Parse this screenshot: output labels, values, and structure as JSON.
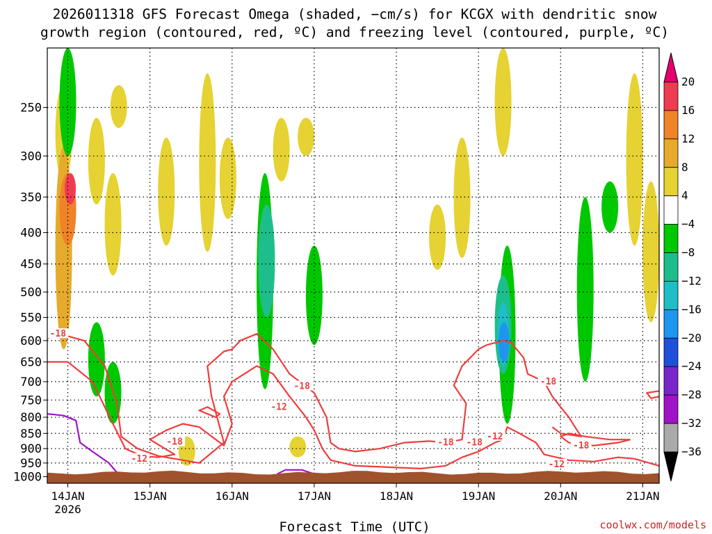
{
  "chart_data": {
    "type": "heatmap",
    "title_lines": [
      "2026011318 GFS Forecast Omega (shaded, −cm/s) for KCGX with dendritic snow",
      "growth region (contoured, red, ºC) and freezing level (contoured, purple, ºC)"
    ],
    "xlabel": "Forecast Time (UTC)",
    "x_ticks": [
      "14JAN",
      "15JAN",
      "16JAN",
      "17JAN",
      "18JAN",
      "19JAN",
      "20JAN",
      "21JAN"
    ],
    "x_tick_days": [
      14,
      15,
      16,
      17,
      18,
      19,
      20,
      21
    ],
    "x_sublabel": "2026",
    "xlim_days": [
      13.75,
      21.2
    ],
    "y_ticks": [
      250,
      300,
      350,
      400,
      450,
      500,
      550,
      600,
      650,
      700,
      750,
      800,
      850,
      900,
      950,
      1000
    ],
    "ylim_hpa": [
      200,
      1025
    ],
    "y_scale": "log",
    "grid": true,
    "colorbar": {
      "labels": [
        "20",
        "16",
        "12",
        "8",
        "4",
        "−4",
        "−8",
        "−12",
        "−16",
        "−20",
        "−24",
        "−28",
        "−32",
        "−36"
      ],
      "colors": [
        "#f03c50",
        "#f08228",
        "#e6aa2d",
        "#e6d232",
        "#ffffff",
        "#00c800",
        "#1ebe8c",
        "#1ebec8",
        "#1e96f0",
        "#1e50dc",
        "#7828c8",
        "#a014c8",
        "#aaaaaa"
      ],
      "top_arrow": "#e6006e",
      "bottom_arrow": "#000000"
    },
    "shaded": [
      {
        "level": "4",
        "color": "#e6d232",
        "day": 13.95,
        "p": [
          230,
          330
        ]
      },
      {
        "level": "4",
        "color": "#e6d232",
        "day": 14.35,
        "p": [
          260,
          360
        ]
      },
      {
        "level": "4",
        "color": "#e6d232",
        "day": 14.55,
        "p": [
          320,
          470
        ]
      },
      {
        "level": "4",
        "color": "#e6d232",
        "day": 14.62,
        "p": [
          230,
          270
        ]
      },
      {
        "level": "4",
        "color": "#e6d232",
        "day": 15.2,
        "p": [
          280,
          420
        ]
      },
      {
        "level": "4",
        "color": "#e6d232",
        "day": 15.7,
        "p": [
          220,
          430
        ]
      },
      {
        "level": "4",
        "color": "#e6d232",
        "day": 15.95,
        "p": [
          280,
          380
        ]
      },
      {
        "level": "4",
        "color": "#e6d232",
        "day": 16.6,
        "p": [
          260,
          330
        ]
      },
      {
        "level": "4",
        "color": "#e6d232",
        "day": 16.9,
        "p": [
          260,
          300
        ]
      },
      {
        "level": "4",
        "color": "#e6d232",
        "day": 18.5,
        "p": [
          360,
          460
        ]
      },
      {
        "level": "4",
        "color": "#e6d232",
        "day": 18.8,
        "p": [
          280,
          440
        ]
      },
      {
        "level": "4",
        "color": "#e6d232",
        "day": 19.3,
        "p": [
          200,
          300
        ]
      },
      {
        "level": "4",
        "color": "#e6d232",
        "day": 20.9,
        "p": [
          220,
          420
        ]
      },
      {
        "level": "4",
        "color": "#e6d232",
        "day": 21.1,
        "p": [
          330,
          560
        ]
      },
      {
        "level": "4",
        "color": "#e6d232",
        "day": 15.45,
        "p": [
          860,
          960
        ]
      },
      {
        "level": "4",
        "color": "#e6d232",
        "day": 16.8,
        "p": [
          860,
          930
        ]
      },
      {
        "level": "12",
        "color": "#e6aa2d",
        "day": 13.95,
        "p": [
          290,
          620
        ]
      },
      {
        "level": "16",
        "color": "#f08228",
        "day": 14.0,
        "p": [
          320,
          420
        ]
      },
      {
        "level": "20",
        "color": "#f03c50",
        "day": 14.03,
        "p": [
          320,
          360
        ]
      },
      {
        "level": "-4",
        "color": "#00c800",
        "day": 14.0,
        "p": [
          200,
          300
        ]
      },
      {
        "level": "-4",
        "color": "#00c800",
        "day": 14.35,
        "p": [
          560,
          740
        ]
      },
      {
        "level": "-4",
        "color": "#00c800",
        "day": 14.55,
        "p": [
          650,
          820
        ]
      },
      {
        "level": "-4",
        "color": "#00c800",
        "day": 16.4,
        "p": [
          320,
          720
        ]
      },
      {
        "level": "-4",
        "color": "#00c800",
        "day": 17.0,
        "p": [
          420,
          610
        ]
      },
      {
        "level": "-4",
        "color": "#00c800",
        "day": 19.35,
        "p": [
          420,
          820
        ]
      },
      {
        "level": "-4",
        "color": "#00c800",
        "day": 20.3,
        "p": [
          350,
          700
        ]
      },
      {
        "level": "-4",
        "color": "#00c800",
        "day": 20.6,
        "p": [
          330,
          400
        ]
      },
      {
        "level": "-8",
        "color": "#1ebe8c",
        "day": 16.42,
        "p": [
          360,
          550
        ]
      },
      {
        "level": "-8",
        "color": "#1ebe8c",
        "day": 19.3,
        "p": [
          470,
          680
        ]
      },
      {
        "level": "-12",
        "color": "#1ebec8",
        "day": 19.3,
        "p": [
          520,
          660
        ]
      },
      {
        "level": "-16",
        "color": "#1e96f0",
        "day": 19.31,
        "p": [
          560,
          650
        ]
      }
    ],
    "contours": [
      {
        "name": "dendritic-18-a",
        "color": "#f03c3c",
        "label": "-18",
        "points": [
          [
            13.75,
            595
          ],
          [
            13.9,
            585
          ],
          [
            14.2,
            600
          ],
          [
            14.45,
            660
          ],
          [
            14.6,
            760
          ],
          [
            14.65,
            860
          ],
          [
            14.85,
            900
          ],
          [
            15.1,
            925
          ],
          [
            15.5,
            945
          ],
          [
            15.6,
            950
          ],
          [
            15.9,
            880
          ],
          [
            15.75,
            740
          ],
          [
            15.7,
            660
          ],
          [
            15.9,
            625
          ],
          [
            16.0,
            620
          ],
          [
            16.1,
            600
          ],
          [
            16.3,
            585
          ],
          [
            16.5,
            620
          ],
          [
            16.7,
            680
          ],
          [
            17.0,
            730
          ],
          [
            17.15,
            800
          ],
          [
            17.2,
            880
          ],
          [
            17.3,
            900
          ],
          [
            17.5,
            910
          ],
          [
            17.8,
            900
          ],
          [
            18.1,
            880
          ],
          [
            18.4,
            875
          ],
          [
            18.6,
            880
          ],
          [
            18.8,
            870
          ],
          [
            18.85,
            760
          ],
          [
            18.7,
            710
          ],
          [
            18.8,
            660
          ],
          [
            19.0,
            620
          ],
          [
            19.1,
            610
          ],
          [
            19.3,
            600
          ],
          [
            19.4,
            605
          ],
          [
            19.55,
            640
          ],
          [
            19.6,
            680
          ],
          [
            19.8,
            700
          ],
          [
            19.9,
            740
          ],
          [
            20.0,
            770
          ],
          [
            20.1,
            800
          ],
          [
            20.2,
            840
          ],
          [
            20.25,
            860
          ],
          [
            20.0,
            850
          ],
          [
            19.9,
            830
          ]
        ]
      },
      {
        "name": "dendritic-12-a",
        "color": "#f03c3c",
        "label": "-12",
        "points": [
          [
            13.75,
            650
          ],
          [
            14.0,
            650
          ],
          [
            14.3,
            700
          ],
          [
            14.55,
            820
          ],
          [
            14.7,
            900
          ],
          [
            14.9,
            925
          ],
          [
            15.1,
            930
          ],
          [
            15.3,
            920
          ],
          [
            15.0,
            870
          ],
          [
            15.2,
            840
          ],
          [
            15.4,
            820
          ],
          [
            15.6,
            830
          ],
          [
            15.9,
            890
          ],
          [
            16.0,
            820
          ],
          [
            15.9,
            740
          ],
          [
            16.0,
            700
          ],
          [
            16.3,
            660
          ],
          [
            16.5,
            680
          ],
          [
            16.7,
            740
          ],
          [
            16.9,
            800
          ],
          [
            17.0,
            840
          ],
          [
            17.1,
            900
          ],
          [
            17.2,
            940
          ],
          [
            17.5,
            960
          ],
          [
            17.9,
            965
          ],
          [
            18.3,
            970
          ],
          [
            18.6,
            960
          ],
          [
            18.8,
            930
          ],
          [
            19.0,
            910
          ],
          [
            19.2,
            880
          ],
          [
            19.3,
            870
          ],
          [
            19.35,
            830
          ],
          [
            19.5,
            850
          ],
          [
            19.7,
            880
          ],
          [
            19.8,
            920
          ],
          [
            20.1,
            940
          ],
          [
            20.4,
            945
          ],
          [
            20.7,
            930
          ],
          [
            20.9,
            935
          ],
          [
            21.2,
            960
          ]
        ]
      },
      {
        "name": "dendritic-18-b",
        "color": "#f03c3c",
        "label": "-18",
        "points": [
          [
            20.85,
            870
          ],
          [
            20.7,
            880
          ],
          [
            20.4,
            890
          ],
          [
            20.1,
            880
          ],
          [
            20.0,
            860
          ],
          [
            20.1,
            850
          ],
          [
            20.3,
            860
          ],
          [
            20.6,
            870
          ],
          [
            20.85,
            870
          ]
        ]
      },
      {
        "name": "dendritic-18-c",
        "color": "#f03c3c",
        "label": "-18",
        "points": [
          [
            15.8,
            800
          ],
          [
            15.7,
            790
          ],
          [
            15.6,
            780
          ],
          [
            15.7,
            770
          ],
          [
            15.85,
            790
          ],
          [
            15.8,
            800
          ]
        ]
      },
      {
        "name": "dendritic-18-d",
        "color": "#f03c3c",
        "label": "-18",
        "points": [
          [
            21.2,
            740
          ],
          [
            21.1,
            745
          ],
          [
            21.05,
            730
          ],
          [
            21.2,
            725
          ]
        ]
      },
      {
        "name": "freezing-level-a",
        "color": "#a010c8",
        "label": "",
        "points": [
          [
            13.75,
            790
          ],
          [
            13.95,
            795
          ],
          [
            14.1,
            810
          ],
          [
            14.15,
            880
          ],
          [
            14.3,
            910
          ],
          [
            14.5,
            950
          ],
          [
            14.6,
            985
          ]
        ]
      },
      {
        "name": "freezing-level-b",
        "color": "#a010c8",
        "label": "",
        "points": [
          [
            16.55,
            990
          ],
          [
            16.65,
            975
          ],
          [
            16.85,
            975
          ],
          [
            17.0,
            990
          ]
        ]
      }
    ],
    "contour_labels": [
      {
        "text": "-18",
        "day": 13.88,
        "p": 585,
        "color": "#f03c3c"
      },
      {
        "text": "-18",
        "day": 16.85,
        "p": 712,
        "color": "#f03c3c"
      },
      {
        "text": "-12",
        "day": 16.57,
        "p": 770,
        "color": "#f03c3c"
      },
      {
        "text": "-18",
        "day": 15.3,
        "p": 878,
        "color": "#f03c3c"
      },
      {
        "text": "-12",
        "day": 14.87,
        "p": 935,
        "color": "#f03c3c"
      },
      {
        "text": "-18",
        "day": 18.6,
        "p": 880,
        "color": "#f03c3c"
      },
      {
        "text": "-18",
        "day": 18.95,
        "p": 880,
        "color": "#f03c3c"
      },
      {
        "text": "-12",
        "day": 19.2,
        "p": 860,
        "color": "#f03c3c"
      },
      {
        "text": "-18",
        "day": 19.85,
        "p": 700,
        "color": "#f03c3c"
      },
      {
        "text": "-18",
        "day": 20.25,
        "p": 890,
        "color": "#f03c3c"
      },
      {
        "text": "-12",
        "day": 19.95,
        "p": 955,
        "color": "#f03c3c"
      }
    ],
    "terrain_color": "#a0522d",
    "surface_p": 985
  },
  "credit": "coolwx.com/models"
}
